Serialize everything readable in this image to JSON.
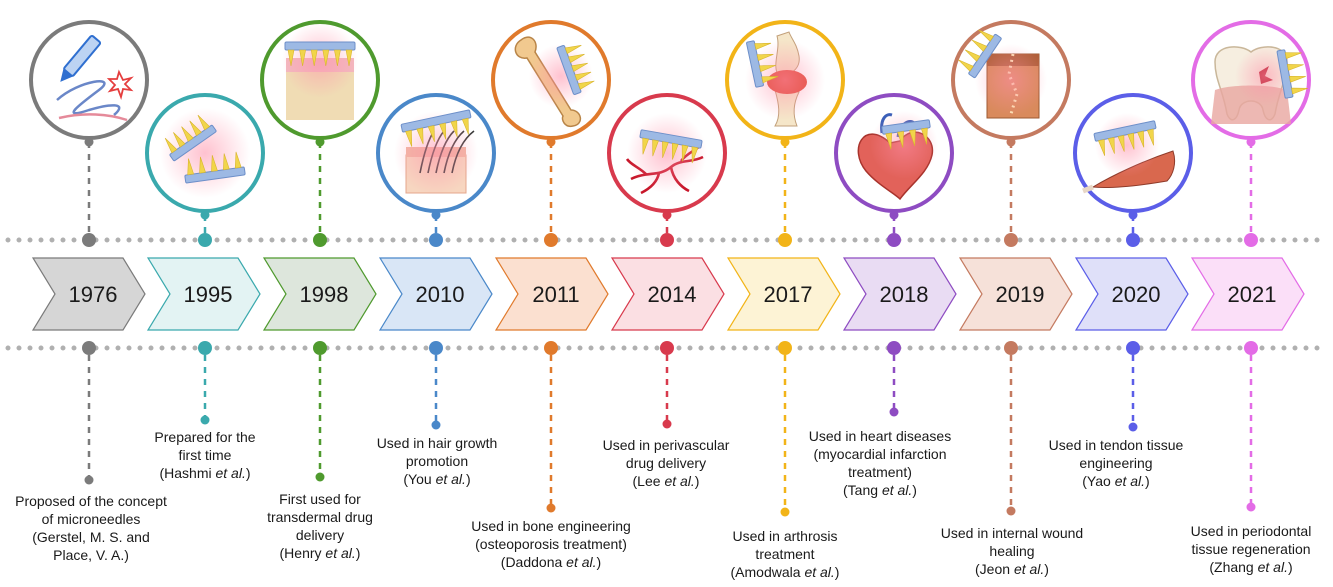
{
  "milestones": [
    {
      "year": "1976",
      "color": "#7b7b7b",
      "fill": "#d6d6d6",
      "desc": [
        "Proposed of the concept",
        "of microneedles",
        "(Gerstel, M. S. and",
        "Place, V. A.)"
      ],
      "illustration": "pen-and-scribble-icon"
    },
    {
      "year": "1995",
      "color": "#3aa9ad",
      "fill": "#e3f3f3",
      "desc": [
        "Prepared for the",
        "first time"
      ],
      "author": "Hashmi",
      "etal": "et al.",
      "illustration": "microneedle-patches-icon"
    },
    {
      "year": "1998",
      "color": "#4f9a2e",
      "fill": "#dde6dc",
      "desc": [
        "First used for",
        "transdermal drug",
        "delivery"
      ],
      "author": "Henry",
      "etal": "et al.",
      "illustration": "skin-patch-icon"
    },
    {
      "year": "2010",
      "color": "#4a88c9",
      "fill": "#d9e6f6",
      "desc": [
        "Used in hair growth",
        "promotion"
      ],
      "author": "You",
      "etal": "et al.",
      "illustration": "hair-follicle-icon"
    },
    {
      "year": "2011",
      "color": "#e07a2c",
      "fill": "#fbe0d0",
      "desc": [
        "Used in bone engineering",
        "(osteoporosis treatment)"
      ],
      "author": "Daddona",
      "etal": "et al.",
      "illustration": "bone-icon"
    },
    {
      "year": "2014",
      "color": "#d83a4d",
      "fill": "#fbdfe3",
      "desc": [
        "Used in perivascular",
        "drug delivery"
      ],
      "author": "Lee",
      "etal": "et al.",
      "illustration": "blood-vessel-icon"
    },
    {
      "year": "2017",
      "color": "#f2b418",
      "fill": "#fdf3d5",
      "desc": [
        "Used in arthrosis",
        "treatment"
      ],
      "author": "Amodwala",
      "etal": "et al.",
      "illustration": "knee-joint-icon"
    },
    {
      "year": "2018",
      "color": "#8e4cc2",
      "fill": "#e9dcf3",
      "desc": [
        "Used in heart diseases",
        "(myocardial infarction",
        "treatment)"
      ],
      "author": "Tang",
      "etal": "et al.",
      "illustration": "heart-icon"
    },
    {
      "year": "2019",
      "color": "#c47a60",
      "fill": "#f6e1d9",
      "desc": [
        "Used in internal wound",
        "healing"
      ],
      "author": "Jeon",
      "etal": "et al.",
      "illustration": "wound-tissue-icon"
    },
    {
      "year": "2020",
      "color": "#5b5ee8",
      "fill": "#dfe0f9",
      "desc": [
        "Used in tendon tissue",
        "engineering"
      ],
      "author": "Yao",
      "etal": "et al.",
      "illustration": "tendon-muscle-icon"
    },
    {
      "year": "2021",
      "color": "#e36ce6",
      "fill": "#fbdff8",
      "desc": [
        "Used in periodontal",
        "tissue regeneration"
      ],
      "author": "Zhang",
      "etal": "et al.",
      "illustration": "tooth-icon"
    }
  ]
}
